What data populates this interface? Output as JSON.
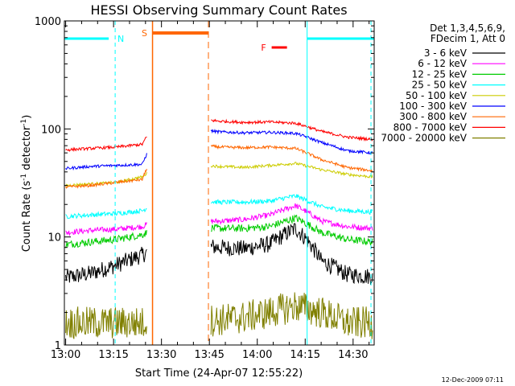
{
  "chart_data": {
    "type": "line",
    "title": "HESSI Observing Summary Count Rates",
    "xlabel": "Start Time (24-Apr-07 12:55:22)",
    "ylabel_main": "Count Rate (s",
    "ylabel_sup1": "-1",
    "ylabel_mid": " detector",
    "ylabel_sup2": "-1",
    "ylabel_end": ")",
    "yscale": "log",
    "ylim": [
      1,
      1000
    ],
    "xlim_minutes": [
      -0.4,
      96.6
    ],
    "x_tick_labels": [
      "13:00",
      "13:15",
      "13:30",
      "13:45",
      "14:00",
      "14:15",
      "14:30"
    ],
    "x_tick_minutes": [
      0,
      15,
      30,
      45,
      60,
      75,
      90
    ],
    "y_tick_labels": [
      "1",
      "10",
      "100",
      "1000"
    ],
    "y_tick_values": [
      1,
      10,
      100,
      1000
    ],
    "legend_header": [
      "Det 1,3,4,5,6,9,",
      "FDecim 1, Att 0"
    ],
    "legend_position": "right",
    "footer_date": "12-Dec-2009 07:11",
    "series": [
      {
        "name": "3 - 6 keV",
        "color": "#000000",
        "levels": [
          4.2,
          4.6,
          5.5,
          6.8,
          9.0,
          8.4,
          8.0,
          7.8,
          8.6,
          12.0,
          6.0,
          4.5,
          4.3
        ],
        "noise": 0.18
      },
      {
        "name": "6 - 12 keV",
        "color": "#ff00ff",
        "levels": [
          11.0,
          11.5,
          11.8,
          12.5,
          15.5,
          14.0,
          14.0,
          14.5,
          16.0,
          19.5,
          14.0,
          12.5,
          12.0
        ],
        "noise": 0.06
      },
      {
        "name": "12 - 25 keV",
        "color": "#00cc00",
        "levels": [
          8.5,
          9.0,
          9.5,
          10.5,
          13.0,
          12.5,
          12.0,
          12.0,
          12.5,
          15.0,
          11.0,
          9.5,
          9.0
        ],
        "noise": 0.08
      },
      {
        "name": "25 - 50 keV",
        "color": "#00ffff",
        "levels": [
          15.5,
          16.0,
          16.5,
          17.5,
          23.0,
          22.0,
          21.0,
          21.0,
          21.5,
          24.0,
          19.0,
          17.5,
          17.0
        ],
        "noise": 0.05
      },
      {
        "name": "50 - 100 keV",
        "color": "#cccc00",
        "levels": [
          30.0,
          31.0,
          32.0,
          36.0,
          52.0,
          47.0,
          45.0,
          44.0,
          46.0,
          48.0,
          42.0,
          38.0,
          36.0
        ],
        "noise": 0.03
      },
      {
        "name": "100 - 300 keV",
        "color": "#0000ff",
        "levels": [
          43.0,
          45.0,
          46.0,
          47.0,
          112.0,
          100.0,
          94.0,
          92.0,
          93.0,
          91.0,
          75.0,
          63.0,
          60.0
        ],
        "noise": 0.03
      },
      {
        "name": "300 - 800 keV",
        "color": "#ff6600",
        "levels": [
          29.0,
          30.0,
          32.0,
          34.0,
          85.0,
          72.0,
          68.0,
          67.0,
          68.0,
          66.0,
          52.0,
          44.0,
          41.0
        ],
        "noise": 0.03
      },
      {
        "name": "800 - 7000 keV",
        "color": "#ff0000",
        "levels": [
          64.0,
          66.0,
          68.0,
          72.0,
          145.0,
          125.0,
          118.0,
          115.0,
          116.0,
          113.0,
          95.0,
          84.0,
          80.0
        ],
        "noise": 0.03
      },
      {
        "name": "7000 - 20000 keV",
        "color": "#808000",
        "levels": [
          1.6,
          1.6,
          1.6,
          1.6,
          1.7,
          1.7,
          1.7,
          1.8,
          2.0,
          2.3,
          2.0,
          1.6,
          1.6
        ],
        "noise": 0.35
      }
    ],
    "data_segments_minutes": [
      [
        0,
        25.5
      ],
      [
        45.5,
        96.3
      ]
    ],
    "annotations": [
      {
        "label": "N",
        "color": "#00ffff"
      },
      {
        "label": "S",
        "color": "#ff6600"
      },
      {
        "label": "F",
        "color": "#ff0000"
      }
    ],
    "night_intervals_minutes": [
      [
        -0.4,
        15.5
      ],
      [
        75.6,
        96.6
      ]
    ],
    "saa_interval_minutes": [
      27.2,
      44.7
    ],
    "flare_interval_minutes": [
      64.5,
      69.3
    ]
  }
}
